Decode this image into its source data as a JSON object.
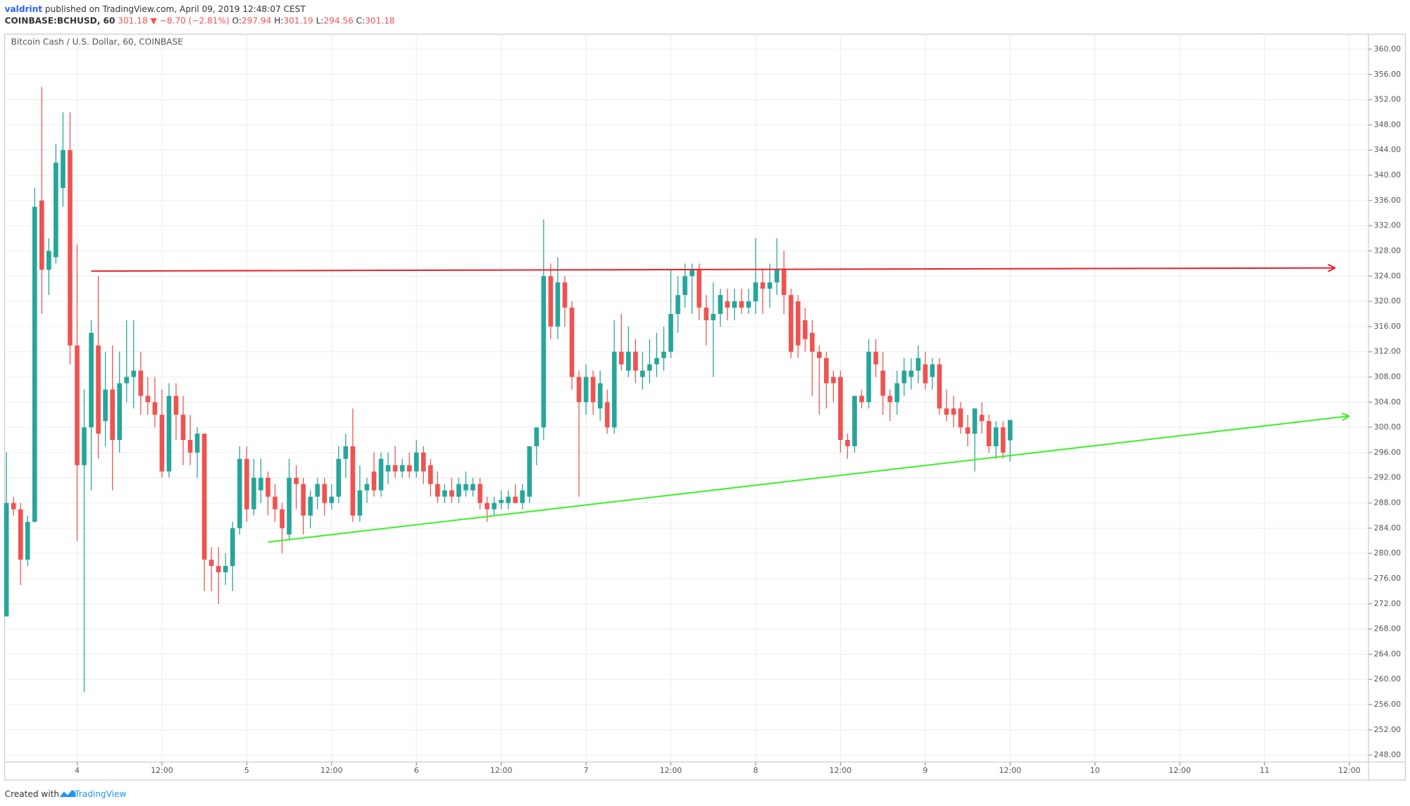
{
  "header": {
    "author": "valdrint",
    "published": "published on TradingView.com, April 09, 2019 12:48:07 CEST",
    "symbol": "COINBASE:BCHUSD, 60",
    "last": "301.18",
    "change": "▼ −8.70 (−2.81%)",
    "ohlc": [
      {
        "label": "O:",
        "value": "297.94"
      },
      {
        "label": "H:",
        "value": "301.19"
      },
      {
        "label": "L:",
        "value": "294.56"
      },
      {
        "label": "C:",
        "value": "301.18"
      }
    ]
  },
  "footer": {
    "created": "Created with",
    "brand": "TradingView"
  },
  "chart_data": {
    "type": "candlestick",
    "title": "Bitcoin Cash / U.S. Dollar, 60, COINBASE",
    "up_color": "#26a69a",
    "down_color": "#ef5350",
    "grid": true,
    "open": [
      270,
      288,
      287,
      279,
      285,
      336,
      325,
      327,
      338,
      344,
      313,
      294,
      300,
      313,
      301,
      306,
      298,
      307,
      308,
      309,
      305,
      304,
      302,
      293,
      305,
      302,
      298,
      296,
      299,
      279,
      278,
      277,
      278,
      284,
      295,
      287,
      290,
      292,
      289,
      287,
      283,
      292,
      291,
      286,
      289,
      291,
      288,
      289,
      295,
      297,
      286,
      290,
      293,
      290,
      293,
      294,
      293,
      294,
      293,
      296,
      294,
      291,
      289,
      290,
      289,
      290,
      290,
      291,
      288,
      287,
      288,
      288,
      289,
      288,
      289,
      297,
      300,
      324,
      316,
      323,
      319,
      308,
      304,
      308,
      303,
      304,
      300,
      312,
      309,
      312,
      308,
      309,
      310,
      311,
      312,
      318,
      321,
      324,
      325,
      319,
      317,
      318,
      320,
      319,
      320,
      319,
      320,
      323,
      322,
      323,
      325,
      321,
      320,
      317,
      315,
      312,
      311,
      308,
      308,
      298,
      297,
      305,
      304,
      312,
      309,
      305,
      304,
      307,
      308,
      309,
      310,
      308,
      310,
      303,
      303,
      303,
      300,
      299,
      302,
      301,
      297,
      300,
      297.94
    ],
    "high": [
      296,
      289,
      288,
      286,
      338,
      354,
      330,
      345,
      350,
      350,
      329,
      306,
      317,
      324,
      312,
      313,
      312,
      317,
      317,
      312,
      308,
      308,
      306,
      307,
      307,
      305,
      302,
      300,
      299,
      281,
      281,
      280,
      285,
      297,
      297,
      295,
      295,
      293,
      291,
      288,
      295,
      294,
      292,
      290,
      292,
      292,
      291,
      297,
      299,
      303,
      294,
      292,
      296,
      296,
      296,
      297,
      295,
      296,
      298,
      297,
      295,
      293,
      291,
      292,
      292,
      293,
      292,
      292,
      289,
      289,
      290,
      290,
      291,
      291,
      297,
      300,
      333,
      326,
      327,
      324,
      320,
      309,
      310,
      309,
      309,
      306,
      317,
      318,
      316,
      314,
      312,
      314,
      315,
      316,
      325,
      324,
      326,
      326,
      326,
      321,
      323,
      322,
      322,
      322,
      322,
      322,
      330,
      325,
      326,
      330,
      328,
      322,
      321,
      319,
      317,
      313,
      312,
      309,
      309,
      299,
      305,
      306,
      314,
      314,
      312,
      306,
      309,
      311,
      311,
      313,
      312,
      311,
      311,
      306,
      305,
      304,
      302,
      303,
      304,
      302,
      301,
      301,
      301.19
    ],
    "low": [
      270,
      286,
      275,
      278,
      285,
      318,
      321,
      326,
      335,
      310,
      282,
      258,
      290,
      295,
      297,
      290,
      296,
      304,
      303,
      302,
      302,
      300,
      292,
      292,
      298,
      294,
      294,
      292,
      274,
      274,
      272,
      275,
      274,
      283,
      285,
      286,
      288,
      286,
      285,
      280,
      282,
      287,
      283,
      284,
      287,
      286,
      287,
      288,
      292,
      285,
      285,
      288,
      289,
      289,
      291,
      292,
      292,
      292,
      292,
      291,
      289,
      288,
      288,
      288,
      288,
      289,
      289,
      287,
      285,
      286,
      287,
      287,
      288,
      287,
      288,
      294,
      298,
      314,
      314,
      316,
      306,
      289,
      302,
      302,
      301,
      299,
      299,
      309,
      308,
      307,
      306,
      307,
      308,
      309,
      311,
      315,
      319,
      318,
      317,
      313,
      308,
      316,
      317,
      317,
      318,
      318,
      318,
      318,
      319,
      321,
      318,
      311,
      311,
      312,
      305,
      302,
      303,
      304,
      296,
      295,
      296,
      303,
      303,
      308,
      302,
      301,
      302,
      305,
      306,
      307,
      306,
      306,
      302,
      301,
      300,
      299,
      297,
      293,
      299,
      296,
      295,
      295,
      294.56
    ],
    "close": [
      288,
      287,
      279,
      285,
      335,
      325,
      328,
      342,
      344,
      313,
      294,
      300,
      315,
      299,
      306,
      298,
      307,
      308,
      309,
      305,
      304,
      302,
      293,
      305,
      302,
      298,
      296,
      299,
      279,
      278,
      277,
      278,
      284,
      295,
      287,
      292,
      292,
      289,
      287,
      284,
      292,
      291,
      286,
      289,
      291,
      288,
      289,
      295,
      297,
      286,
      290,
      291,
      290,
      295,
      294,
      293,
      294,
      293,
      296,
      293,
      291,
      289,
      290,
      289,
      291,
      291,
      291,
      288,
      287,
      288,
      288.5,
      289,
      288,
      290,
      297,
      300,
      324,
      316,
      323,
      319,
      308,
      304,
      308,
      304,
      307,
      300,
      312,
      310,
      312,
      309,
      309,
      310,
      311,
      312,
      318,
      321,
      324,
      325,
      319,
      317,
      318,
      321,
      319,
      320,
      319,
      320,
      323,
      322,
      323,
      325,
      321,
      312,
      313,
      314,
      312,
      311,
      307,
      307,
      298,
      297,
      305,
      304,
      312,
      310,
      305,
      304,
      307,
      309,
      309,
      311,
      307,
      310,
      303,
      302,
      302,
      300,
      299,
      303,
      301,
      297,
      300,
      296,
      301.18
    ],
    "xlim": [
      -0.25,
      192.7
    ],
    "xticks": [
      {
        "value": 10,
        "label": "4"
      },
      {
        "value": 22,
        "label": "12:00"
      },
      {
        "value": 34,
        "label": "5"
      },
      {
        "value": 46,
        "label": "12:00"
      },
      {
        "value": 58,
        "label": "6"
      },
      {
        "value": 70,
        "label": "12:00"
      },
      {
        "value": 82,
        "label": "7"
      },
      {
        "value": 94,
        "label": "12:00"
      },
      {
        "value": 106,
        "label": "8"
      },
      {
        "value": 118,
        "label": "12:00"
      },
      {
        "value": 130,
        "label": "9"
      },
      {
        "value": 142,
        "label": "12:00"
      },
      {
        "value": 154,
        "label": "10"
      },
      {
        "value": 166,
        "label": "12:00"
      },
      {
        "value": 178,
        "label": "11"
      },
      {
        "value": 190,
        "label": "12:00"
      }
    ],
    "ylim": [
      246.9,
      362.4
    ],
    "yticks": [
      {
        "value": 248,
        "label": "248.00"
      },
      {
        "value": 252,
        "label": "252.00"
      },
      {
        "value": 256,
        "label": "256.00"
      },
      {
        "value": 260,
        "label": "260.00"
      },
      {
        "value": 264,
        "label": "264.00"
      },
      {
        "value": 268,
        "label": "268.00"
      },
      {
        "value": 272,
        "label": "272.00"
      },
      {
        "value": 276,
        "label": "276.00"
      },
      {
        "value": 280,
        "label": "280.00"
      },
      {
        "value": 284,
        "label": "284.00"
      },
      {
        "value": 288,
        "label": "288.00"
      },
      {
        "value": 292,
        "label": "292.00"
      },
      {
        "value": 296,
        "label": "296.00"
      },
      {
        "value": 300,
        "label": "300.00"
      },
      {
        "value": 304,
        "label": "304.00"
      },
      {
        "value": 308,
        "label": "308.00"
      },
      {
        "value": 312,
        "label": "312.00"
      },
      {
        "value": 316,
        "label": "316.00"
      },
      {
        "value": 320,
        "label": "320.00"
      },
      {
        "value": 324,
        "label": "324.00"
      },
      {
        "value": 328,
        "label": "328.00"
      },
      {
        "value": 332,
        "label": "332.00"
      },
      {
        "value": 336,
        "label": "336.00"
      },
      {
        "value": 340,
        "label": "340.00"
      },
      {
        "value": 344,
        "label": "344.00"
      },
      {
        "value": 348,
        "label": "348.00"
      },
      {
        "value": 352,
        "label": "352.00"
      },
      {
        "value": 356,
        "label": "356.00"
      },
      {
        "value": 360,
        "label": "360.00"
      }
    ],
    "trend_lines": [
      {
        "color": "#e8242c",
        "x": [
          12,
          188
        ],
        "y": [
          324.8,
          325.3
        ]
      },
      {
        "color": "#3ef02c",
        "x": [
          37,
          190
        ],
        "y": [
          281.8,
          301.8
        ]
      }
    ]
  }
}
